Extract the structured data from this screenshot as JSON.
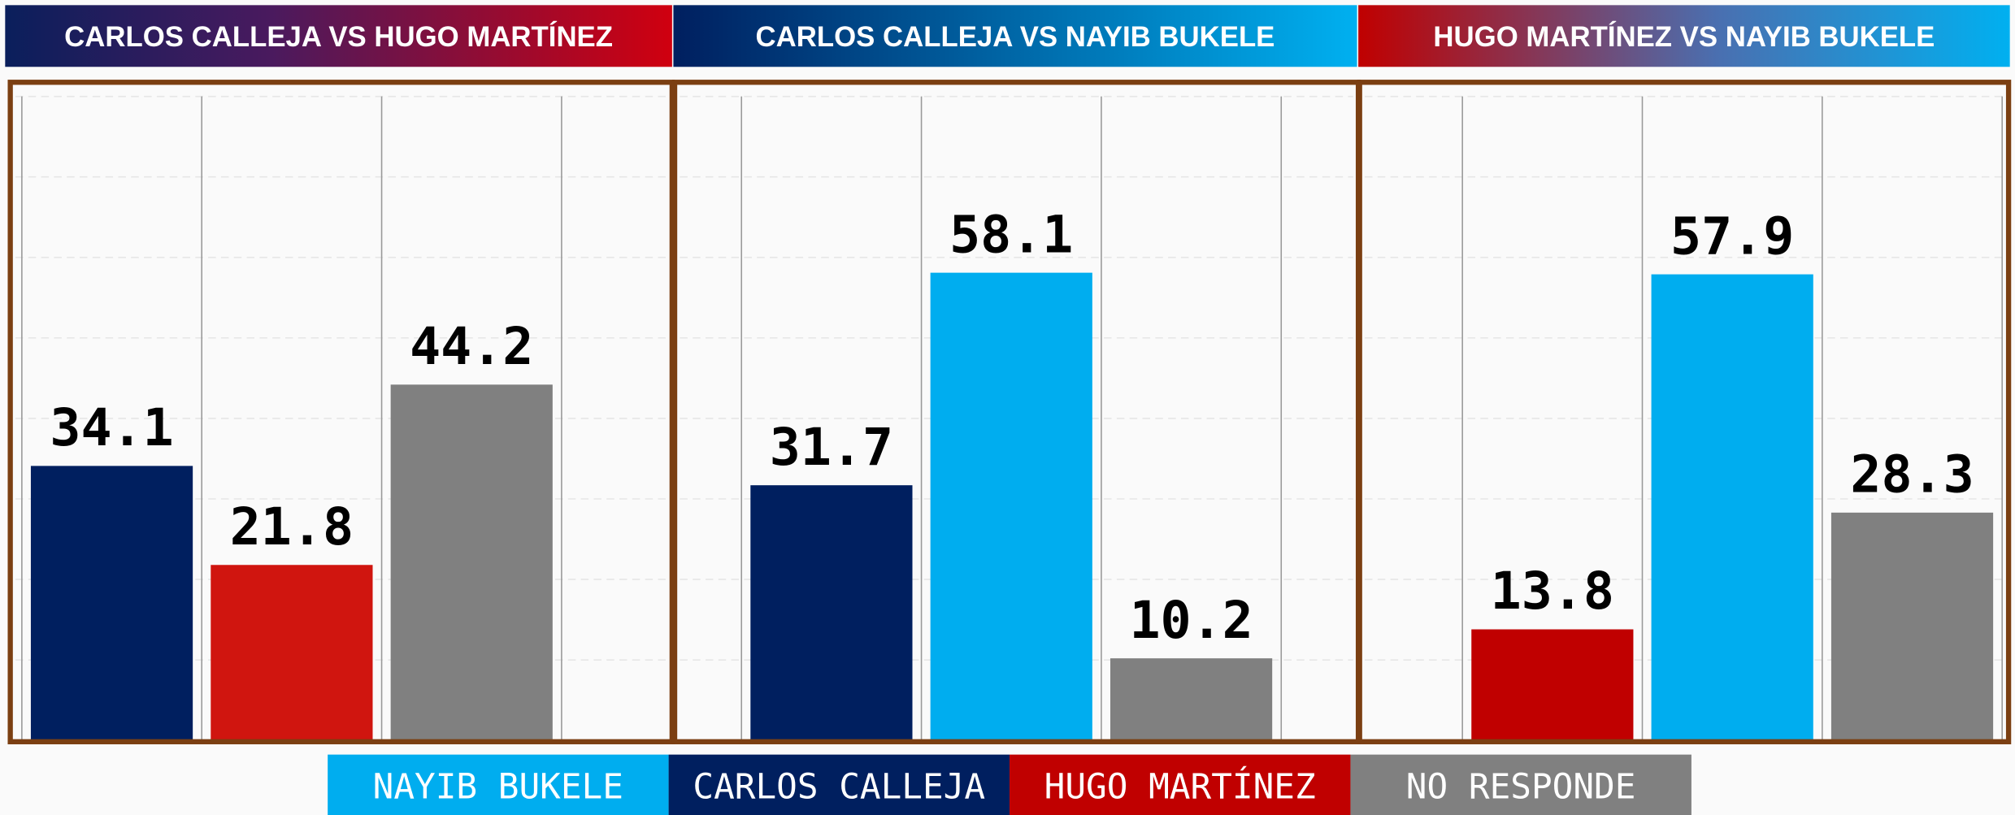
{
  "chart_data": [
    {
      "type": "bar",
      "title": "CARLOS CALLEJA VS HUGO MARTÍNEZ",
      "categories": [
        "CARLOS CALLEJA",
        "HUGO MARTÍNEZ",
        "NO RESPONDE"
      ],
      "values": [
        34.1,
        21.8,
        44.2
      ],
      "colors": [
        "#001f5f",
        "#d0150f",
        "#808080"
      ],
      "ylim": [
        0,
        80
      ],
      "yticks": [
        0,
        10,
        20,
        30,
        40,
        50,
        60,
        70,
        80
      ],
      "grid": true
    },
    {
      "type": "bar",
      "title": "CARLOS CALLEJA VS NAYIB BUKELE",
      "categories": [
        "CARLOS CALLEJA",
        "NAYIB BUKELE",
        "NO RESPONDE"
      ],
      "values": [
        31.7,
        58.1,
        10.2
      ],
      "colors": [
        "#001f5f",
        "#00adef",
        "#808080"
      ],
      "ylim": [
        0,
        80
      ],
      "yticks": [
        0,
        10,
        20,
        30,
        40,
        50,
        60,
        70,
        80
      ],
      "grid": true
    },
    {
      "type": "bar",
      "title": "HUGO MARTÍNEZ VS NAYIB BUKELE",
      "categories": [
        "HUGO MARTÍNEZ",
        "NAYIB BUKELE",
        "NO RESPONDE"
      ],
      "values": [
        13.8,
        57.9,
        28.3
      ],
      "colors": [
        "#c00000",
        "#00adef",
        "#808080"
      ],
      "ylim": [
        0,
        80
      ],
      "yticks": [
        0,
        10,
        20,
        30,
        40,
        50,
        60,
        70,
        80
      ],
      "grid": true
    }
  ],
  "legend": [
    {
      "name": "NAYIB BUKELE",
      "color": "#00adef"
    },
    {
      "name": "CARLOS CALLEJA",
      "color": "#001f5f"
    },
    {
      "name": "HUGO MARTÍNEZ",
      "color": "#c00000"
    },
    {
      "name": "NO RESPONDE",
      "color": "#808080"
    }
  ]
}
